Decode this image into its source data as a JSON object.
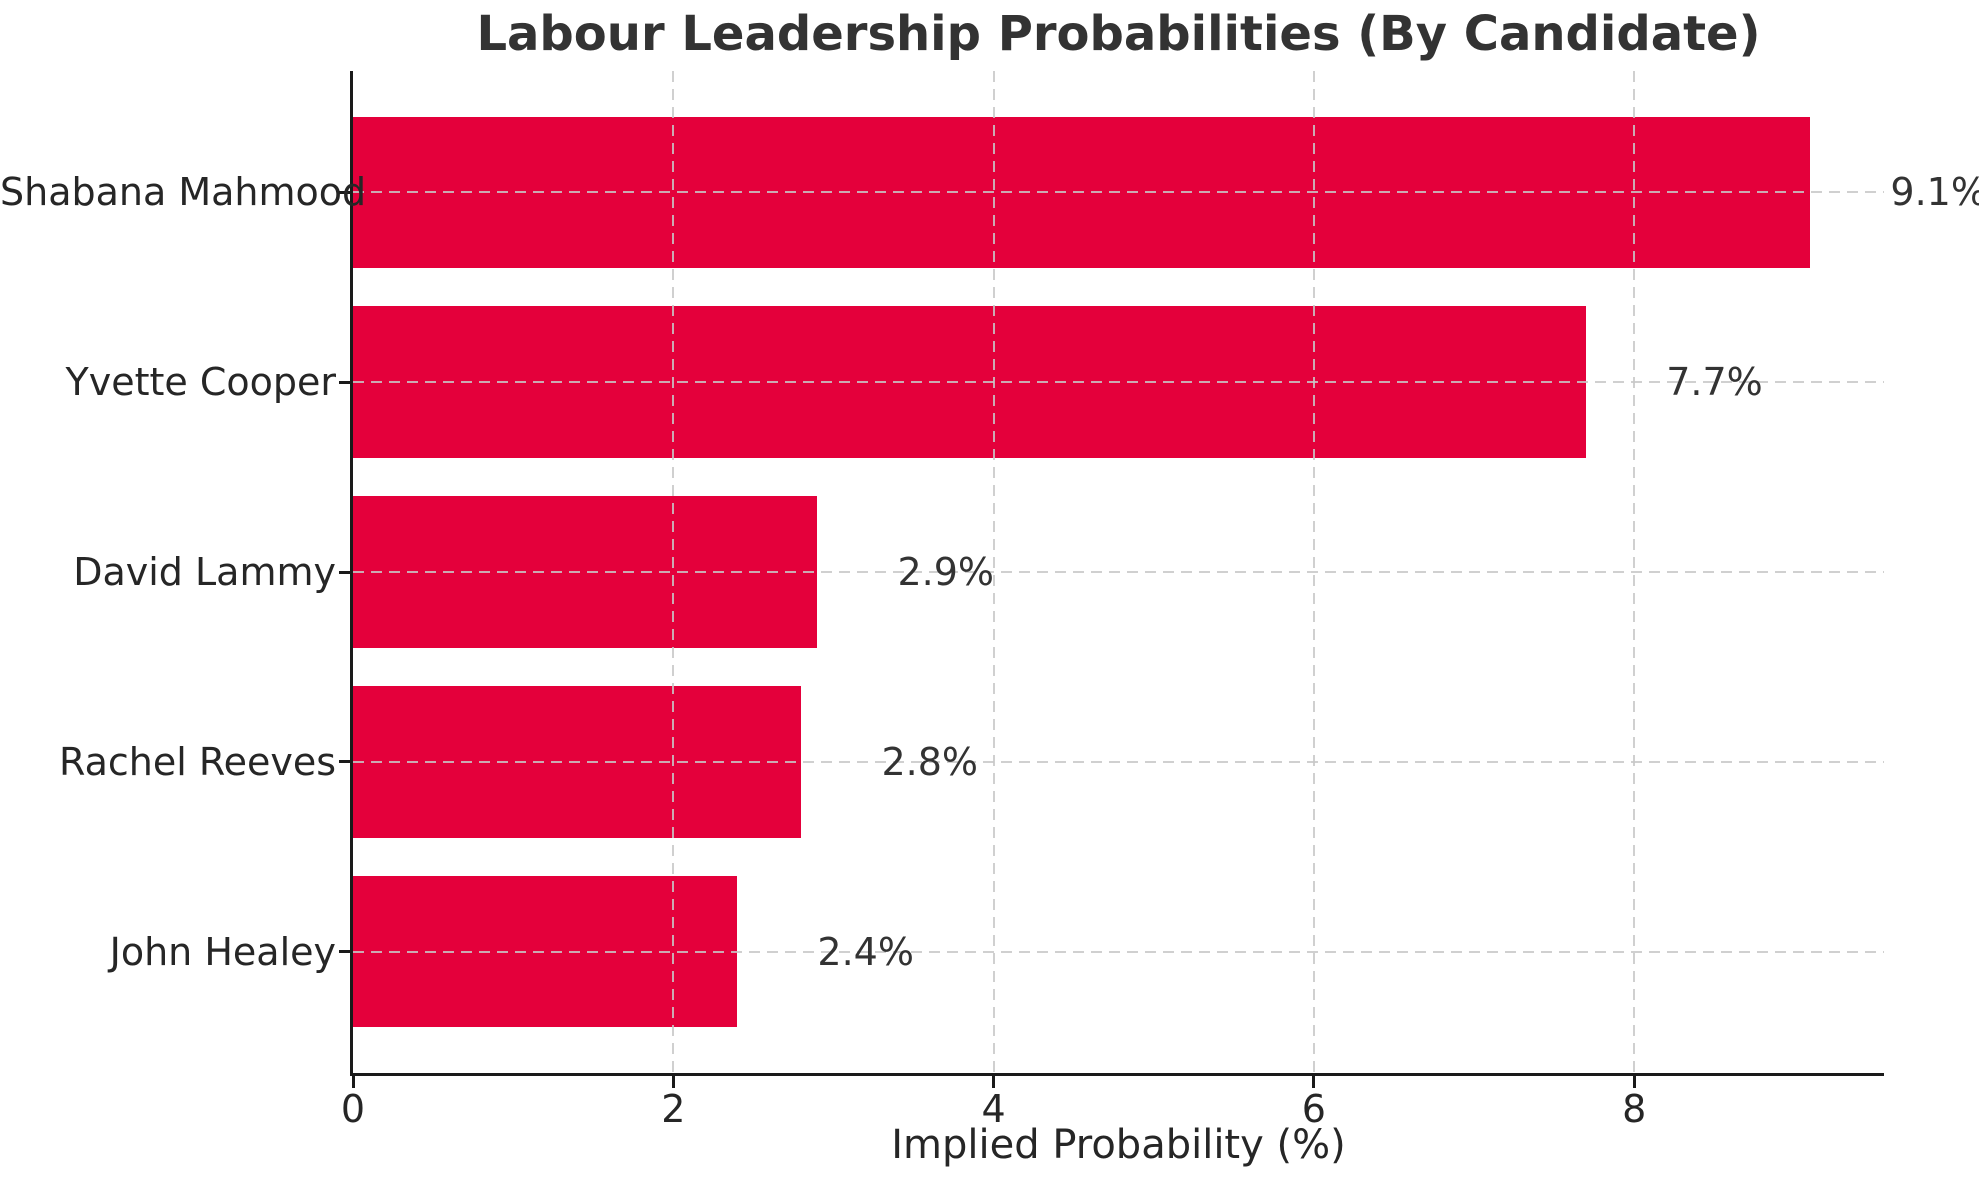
{
  "chart_data": {
    "type": "bar",
    "orientation": "horizontal",
    "title": "Labour Leadership Probabilities (By Candidate)",
    "xlabel": "Implied Probability (%)",
    "ylabel": "",
    "categories": [
      "Shabana Mahmood",
      "Yvette Cooper",
      "David Lammy",
      "Rachel Reeves",
      "John Healey"
    ],
    "values": [
      9.1,
      7.7,
      2.9,
      2.8,
      2.4
    ],
    "value_labels": [
      "9.1%",
      "7.7%",
      "2.9%",
      "2.8%",
      "2.4%"
    ],
    "x_ticks": [
      0,
      2,
      4,
      6,
      8
    ],
    "x_tick_labels": [
      "0",
      "2",
      "4",
      "6",
      "8"
    ],
    "xlim": [
      0,
      9.56
    ],
    "grid": true,
    "grid_style": "dashed",
    "legend": false,
    "colors": {
      "bar": "#E4003B",
      "grid": "#c8c8c8",
      "axis": "#1a1a1a",
      "text": "#262626",
      "title": "#333333"
    }
  }
}
